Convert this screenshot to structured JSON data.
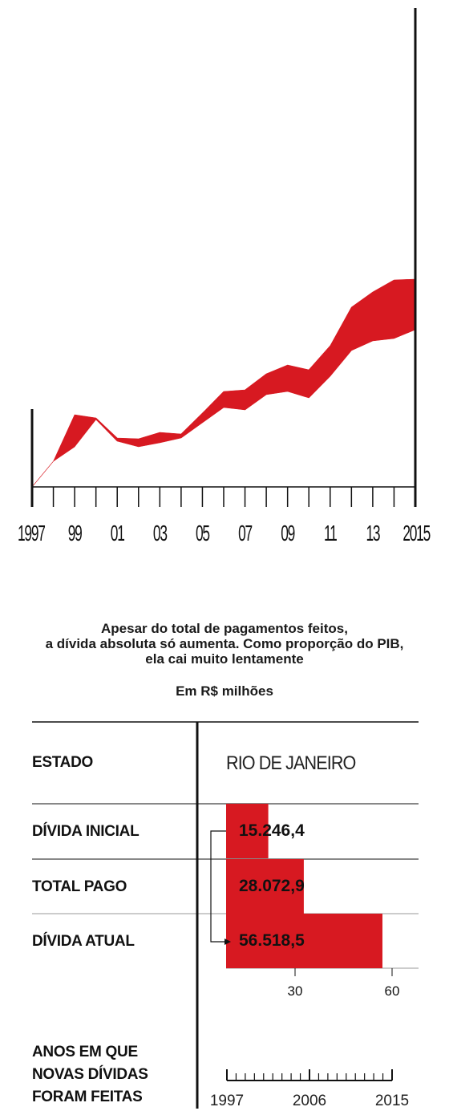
{
  "chart_data": [
    {
      "type": "area",
      "x": [
        1997,
        1998,
        1999,
        2000,
        2001,
        2002,
        2003,
        2004,
        2005,
        2006,
        2007,
        2008,
        2009,
        2010,
        2011,
        2012,
        2013,
        2014,
        2015
      ],
      "x_tick_labels": [
        "1997",
        "99",
        "01",
        "03",
        "05",
        "07",
        "09",
        "11",
        "13",
        "2015"
      ],
      "series": [
        {
          "values_upper": [
            0,
            32,
            90,
            86,
            61,
            60,
            68,
            66,
            92,
            119,
            121,
            141,
            152,
            146,
            176,
            224,
            243,
            258,
            259
          ],
          "values_lower": [
            0,
            32,
            50,
            84,
            57,
            50,
            55,
            61,
            80,
            99,
            96,
            115,
            119,
            111,
            138,
            170,
            182,
            185,
            196
          ]
        }
      ],
      "colors": {
        "fill": "#d71921",
        "axis": "#111111"
      }
    },
    {
      "type": "bar",
      "title": "Apesar do total de pagamentos feitos,\na dívida absoluta só aumenta. Como proporção do PIB,\nela cai muito lentamente",
      "unit": "Em R$ milhões",
      "state_header": "ESTADO",
      "state": "RIO DE JANEIRO",
      "categories": [
        "DÍVIDA INICIAL",
        "TOTAL PAGO",
        "DÍVIDA ATUAL"
      ],
      "values": [
        15246.4,
        28072.9,
        56518.5
      ],
      "value_labels": [
        "15.246,4",
        "28.072,9",
        "56.518,5"
      ],
      "x_ticks": [
        30,
        60
      ],
      "x_tick_labels": [
        "30",
        "60"
      ],
      "years_label": "ANOS EM QUE\nNOVAS DÍVIDAS\nFORAM FEITAS",
      "years_range": [
        1997,
        2015
      ],
      "years_tick_labels": [
        "1997",
        "2006",
        "2015"
      ],
      "colors": {
        "bar": "#d71921"
      }
    }
  ]
}
